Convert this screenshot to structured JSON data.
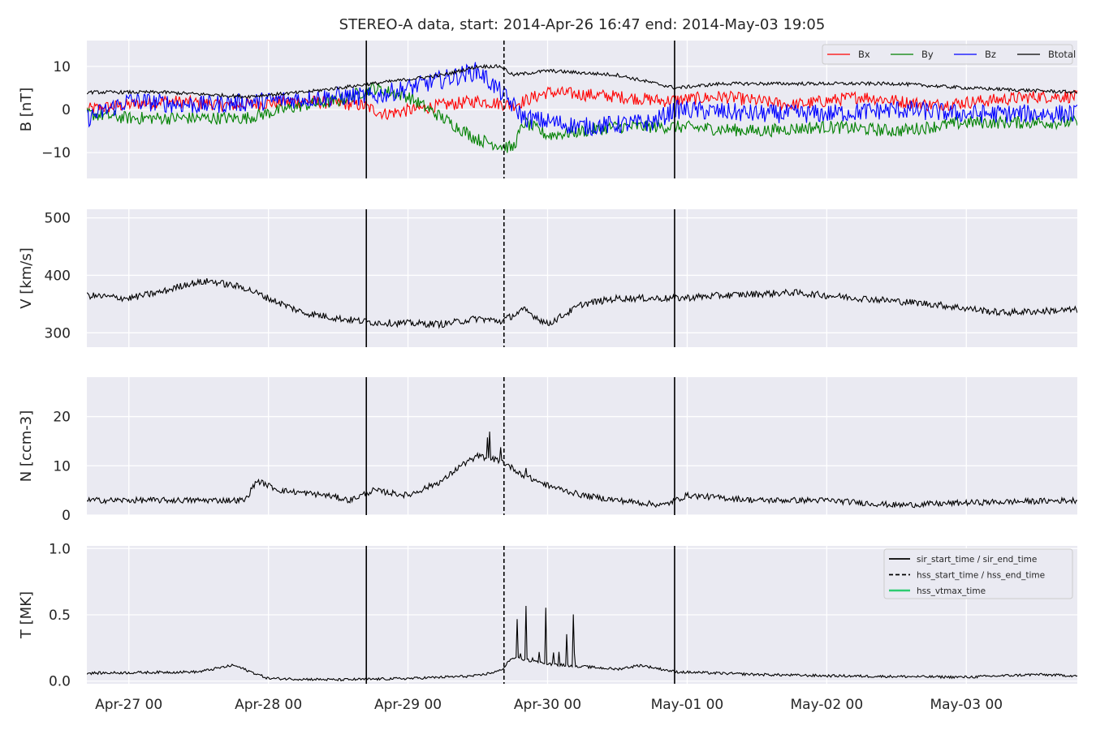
{
  "title": "STEREO-A data, start: 2014-Apr-26 16:47  end: 2014-May-03 19:05",
  "x_range": [
    "2014-04-26T16:47",
    "2014-05-03T19:05"
  ],
  "x_ticks": [
    {
      "t": "2014-04-27T00:00",
      "label": "Apr-27 00"
    },
    {
      "t": "2014-04-28T00:00",
      "label": "Apr-28 00"
    },
    {
      "t": "2014-04-29T00:00",
      "label": "Apr-29 00"
    },
    {
      "t": "2014-04-30T00:00",
      "label": "Apr-30 00"
    },
    {
      "t": "2014-05-01T00:00",
      "label": "May-01 00"
    },
    {
      "t": "2014-05-02T00:00",
      "label": "May-02 00"
    },
    {
      "t": "2014-05-03T00:00",
      "label": "May-03 00"
    }
  ],
  "colors": {
    "Bx": "#ff0000",
    "By": "#008000",
    "Bz": "#0000ff",
    "Btotal": "#000000",
    "hss_vtmax": "#2ecc71"
  },
  "event_lines": [
    {
      "t": "2014-04-28T16:50",
      "style": "solid"
    },
    {
      "t": "2014-04-29T16:30",
      "style": "dashed"
    },
    {
      "t": "2014-04-30T21:50",
      "style": "solid"
    }
  ],
  "legend_events": [
    {
      "label": "sir_start_time / sir_end_time",
      "style": "solid",
      "color": "#000000"
    },
    {
      "label": "hss_start_time / hss_end_time",
      "style": "dashed",
      "color": "#000000"
    },
    {
      "label": "hss_vtmax_time",
      "style": "solid",
      "color": "#2ecc71"
    }
  ],
  "chart_data": [
    {
      "type": "line",
      "ylabel": "B [nT]",
      "ylim": [
        -16,
        16
      ],
      "yticks": [
        10,
        0,
        -10
      ],
      "legend": "top-right",
      "series": [
        {
          "name": "Bx",
          "color": "#ff0000",
          "noise": 1.5,
          "points": [
            [
              "2014-04-26T16:47",
              0
            ],
            [
              "2014-04-27T06:00",
              2
            ],
            [
              "2014-04-27T18:00",
              1
            ],
            [
              "2014-04-28T06:00",
              2
            ],
            [
              "2014-04-28T16:00",
              1
            ],
            [
              "2014-04-28T20:00",
              -1
            ],
            [
              "2014-04-29T06:00",
              1
            ],
            [
              "2014-04-29T12:00",
              2
            ],
            [
              "2014-04-29T18:00",
              1
            ],
            [
              "2014-04-30T00:00",
              4
            ],
            [
              "2014-04-30T12:00",
              3
            ],
            [
              "2014-04-30T20:00",
              2
            ],
            [
              "2014-05-01T06:00",
              3
            ],
            [
              "2014-05-01T18:00",
              1
            ],
            [
              "2014-05-02T06:00",
              3
            ],
            [
              "2014-05-02T18:00",
              1
            ],
            [
              "2014-05-03T12:00",
              3
            ],
            [
              "2014-05-03T19:05",
              3
            ]
          ]
        },
        {
          "name": "By",
          "color": "#008000",
          "noise": 1.5,
          "points": [
            [
              "2014-04-26T16:47",
              -1
            ],
            [
              "2014-04-27T00:00",
              -2
            ],
            [
              "2014-04-27T12:00",
              -2
            ],
            [
              "2014-04-27T20:00",
              -2
            ],
            [
              "2014-04-28T06:00",
              1
            ],
            [
              "2014-04-28T12:00",
              2
            ],
            [
              "2014-04-28T18:00",
              5
            ],
            [
              "2014-04-29T00:00",
              3
            ],
            [
              "2014-04-29T06:00",
              -2
            ],
            [
              "2014-04-29T12:00",
              -7
            ],
            [
              "2014-04-29T18:00",
              -9
            ],
            [
              "2014-04-29T20:00",
              -3
            ],
            [
              "2014-04-30T00:00",
              -6
            ],
            [
              "2014-04-30T12:00",
              -4
            ],
            [
              "2014-04-30T22:00",
              -4
            ],
            [
              "2014-05-01T12:00",
              -5
            ],
            [
              "2014-05-02T00:00",
              -4
            ],
            [
              "2014-05-02T12:00",
              -5
            ],
            [
              "2014-05-03T00:00",
              -3
            ],
            [
              "2014-05-03T19:05",
              -3
            ]
          ]
        },
        {
          "name": "Bz",
          "color": "#0000ff",
          "noise": 2.2,
          "points": [
            [
              "2014-04-26T16:47",
              -2
            ],
            [
              "2014-04-27T00:00",
              2
            ],
            [
              "2014-04-27T12:00",
              1
            ],
            [
              "2014-04-28T00:00",
              2
            ],
            [
              "2014-04-28T12:00",
              3
            ],
            [
              "2014-04-28T18:00",
              3
            ],
            [
              "2014-04-29T06:00",
              7
            ],
            [
              "2014-04-29T12:00",
              9
            ],
            [
              "2014-04-29T16:00",
              4
            ],
            [
              "2014-04-29T20:00",
              -2
            ],
            [
              "2014-04-30T06:00",
              -4
            ],
            [
              "2014-04-30T18:00",
              -3
            ],
            [
              "2014-04-30T22:00",
              0
            ],
            [
              "2014-05-01T12:00",
              -1
            ],
            [
              "2014-05-02T00:00",
              -1
            ],
            [
              "2014-05-02T12:00",
              0
            ],
            [
              "2014-05-03T00:00",
              -1
            ],
            [
              "2014-05-03T19:05",
              -1
            ]
          ]
        },
        {
          "name": "Btotal",
          "color": "#000000",
          "noise": 0.4,
          "points": [
            [
              "2014-04-26T16:47",
              4
            ],
            [
              "2014-04-27T06:00",
              4
            ],
            [
              "2014-04-27T20:00",
              3
            ],
            [
              "2014-04-28T06:00",
              4
            ],
            [
              "2014-04-28T12:00",
              5
            ],
            [
              "2014-04-28T18:00",
              6
            ],
            [
              "2014-04-29T00:00",
              7
            ],
            [
              "2014-04-29T06:00",
              8
            ],
            [
              "2014-04-29T12:00",
              10
            ],
            [
              "2014-04-29T16:00",
              10
            ],
            [
              "2014-04-29T18:00",
              8
            ],
            [
              "2014-04-30T00:00",
              9
            ],
            [
              "2014-04-30T12:00",
              8
            ],
            [
              "2014-04-30T22:00",
              5
            ],
            [
              "2014-05-01T06:00",
              6
            ],
            [
              "2014-05-02T00:00",
              6
            ],
            [
              "2014-05-02T12:00",
              6
            ],
            [
              "2014-05-03T00:00",
              5
            ],
            [
              "2014-05-03T19:05",
              4
            ]
          ]
        }
      ]
    },
    {
      "type": "line",
      "ylabel": "V [km/s]",
      "ylim": [
        275,
        515
      ],
      "yticks": [
        500,
        400,
        300
      ],
      "series": [
        {
          "color": "#000000",
          "noise": 6,
          "points": [
            [
              "2014-04-26T16:47",
              365
            ],
            [
              "2014-04-27T00:00",
              360
            ],
            [
              "2014-04-27T06:00",
              372
            ],
            [
              "2014-04-27T10:00",
              385
            ],
            [
              "2014-04-27T14:00",
              390
            ],
            [
              "2014-04-27T20:00",
              378
            ],
            [
              "2014-04-28T00:00",
              360
            ],
            [
              "2014-04-28T06:00",
              335
            ],
            [
              "2014-04-28T12:00",
              325
            ],
            [
              "2014-04-28T18:00",
              318
            ],
            [
              "2014-04-29T06:00",
              315
            ],
            [
              "2014-04-29T12:00",
              325
            ],
            [
              "2014-04-29T16:00",
              320
            ],
            [
              "2014-04-29T20:00",
              340
            ],
            [
              "2014-04-30T00:00",
              315
            ],
            [
              "2014-04-30T06:00",
              350
            ],
            [
              "2014-04-30T12:00",
              360
            ],
            [
              "2014-04-30T22:00",
              360
            ],
            [
              "2014-05-01T06:00",
              365
            ],
            [
              "2014-05-01T18:00",
              370
            ],
            [
              "2014-05-02T06:00",
              360
            ],
            [
              "2014-05-02T18:00",
              350
            ],
            [
              "2014-05-03T06:00",
              335
            ],
            [
              "2014-05-03T19:05",
              340
            ]
          ]
        }
      ]
    },
    {
      "type": "line",
      "ylabel": "N [ccm-3]",
      "ylim": [
        0,
        28
      ],
      "yticks": [
        20,
        10,
        0
      ],
      "series": [
        {
          "color": "#000000",
          "noise": 0.6,
          "points": [
            [
              "2014-04-26T16:47",
              3
            ],
            [
              "2014-04-27T12:00",
              3
            ],
            [
              "2014-04-27T20:00",
              3
            ],
            [
              "2014-04-27T22:00",
              7
            ],
            [
              "2014-04-28T02:00",
              5
            ],
            [
              "2014-04-28T10:00",
              4
            ],
            [
              "2014-04-28T14:00",
              3
            ],
            [
              "2014-04-28T18:00",
              5
            ],
            [
              "2014-04-29T00:00",
              4
            ],
            [
              "2014-04-29T06:00",
              7
            ],
            [
              "2014-04-29T09:00",
              10
            ],
            [
              "2014-04-29T12:00",
              12
            ],
            [
              "2014-04-29T16:00",
              11
            ],
            [
              "2014-04-29T20:00",
              8
            ],
            [
              "2014-04-30T00:00",
              6
            ],
            [
              "2014-04-30T06:00",
              4
            ],
            [
              "2014-04-30T12:00",
              3
            ],
            [
              "2014-04-30T20:00",
              2
            ],
            [
              "2014-05-01T00:00",
              4
            ],
            [
              "2014-05-01T12:00",
              3
            ],
            [
              "2014-05-02T00:00",
              3
            ],
            [
              "2014-05-02T12:00",
              2
            ],
            [
              "2014-05-03T00:00",
              2.5
            ],
            [
              "2014-05-03T19:05",
              3
            ]
          ]
        }
      ]
    },
    {
      "type": "line",
      "ylabel": "T [MK]",
      "ylim": [
        -0.02,
        1.02
      ],
      "yticks": [
        1.0,
        0.5,
        0.0
      ],
      "legend": "top-right",
      "series": [
        {
          "color": "#000000",
          "noise": 0.01,
          "points": [
            [
              "2014-04-26T16:47",
              0.06
            ],
            [
              "2014-04-27T12:00",
              0.07
            ],
            [
              "2014-04-27T18:00",
              0.12
            ],
            [
              "2014-04-28T00:00",
              0.02
            ],
            [
              "2014-04-28T12:00",
              0.01
            ],
            [
              "2014-04-29T00:00",
              0.02
            ],
            [
              "2014-04-29T12:00",
              0.04
            ],
            [
              "2014-04-29T16:00",
              0.08
            ],
            [
              "2014-04-29T18:00",
              0.18
            ],
            [
              "2014-04-30T00:00",
              0.13
            ],
            [
              "2014-04-30T12:00",
              0.09
            ],
            [
              "2014-04-30T16:00",
              0.12
            ],
            [
              "2014-04-30T22:00",
              0.07
            ],
            [
              "2014-05-01T12:00",
              0.05
            ],
            [
              "2014-05-02T00:00",
              0.04
            ],
            [
              "2014-05-03T00:00",
              0.03
            ],
            [
              "2014-05-03T12:00",
              0.05
            ],
            [
              "2014-05-03T19:05",
              0.04
            ]
          ]
        }
      ]
    }
  ]
}
